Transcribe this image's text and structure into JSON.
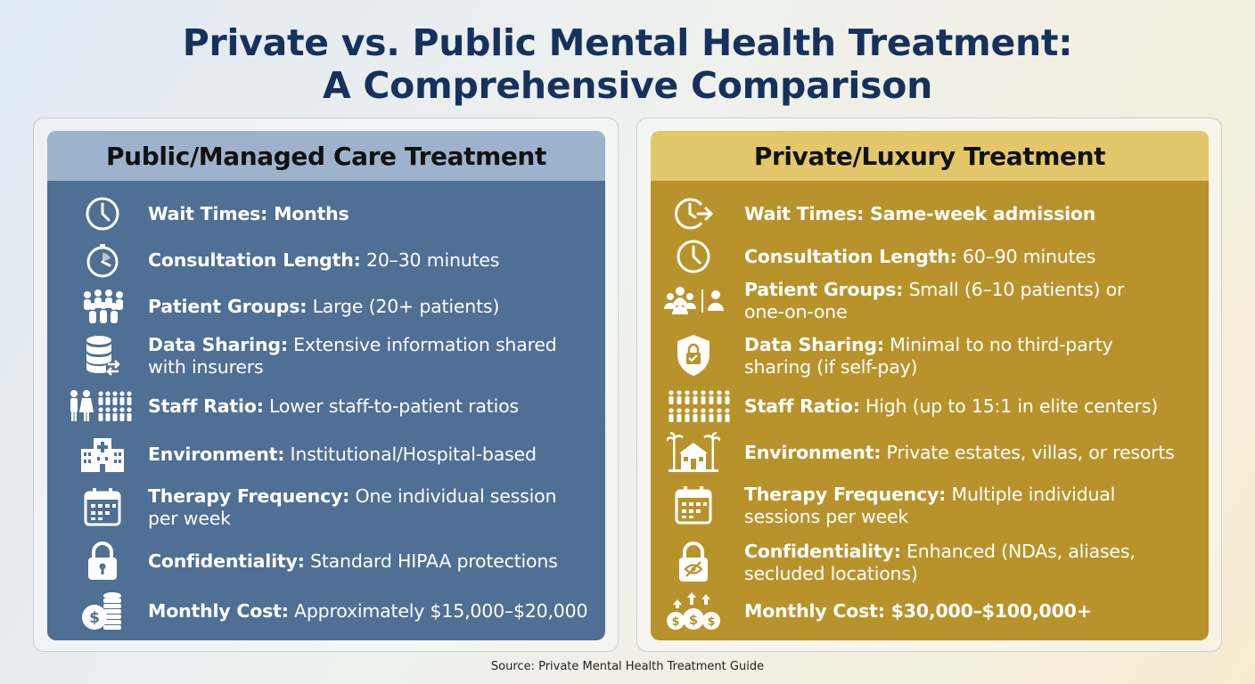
{
  "title": {
    "line1": "Private vs. Public Mental Health Treatment:",
    "line2": "A Comprehensive Comparison"
  },
  "colors": {
    "title": "#16325c",
    "public_card": "#4f6f94",
    "public_header": "#9db3cd",
    "private_card": "#b8932c",
    "private_header": "#e3c76b"
  },
  "public": {
    "heading": "Public/Managed Care Treatment",
    "rows": [
      {
        "icon": "clock-icon",
        "label": "Wait Times: Months",
        "value": "",
        "value2": ""
      },
      {
        "icon": "stopwatch-icon",
        "label": "Consultation Length:",
        "value": " 20–30 minutes",
        "value2": ""
      },
      {
        "icon": "crowd-icon",
        "label": "Patient Groups:",
        "value": " Large (20+ patients)",
        "value2": ""
      },
      {
        "icon": "database-transfer-icon",
        "label": "Data Sharing:",
        "value": " Extensive information shared",
        "value2": "with insurers"
      },
      {
        "icon": "staff-people-icon",
        "label": "Staff Ratio:",
        "value": " Lower staff-to-patient ratios",
        "value2": ""
      },
      {
        "icon": "hospital-icon",
        "label": "Environment:",
        "value": " Institutional/Hospital-based",
        "value2": ""
      },
      {
        "icon": "calendar-icon",
        "label": "Therapy Frequency:",
        "value": " One individual session",
        "value2": "per week"
      },
      {
        "icon": "lock-icon",
        "label": "Confidentiality:",
        "value": " Standard HIPAA protections",
        "value2": ""
      },
      {
        "icon": "coins-icon",
        "label": "Monthly Cost:",
        "value": " Approximately $15,000–$20,000",
        "value2": ""
      }
    ]
  },
  "private": {
    "heading": "Private/Luxury Treatment",
    "rows": [
      {
        "icon": "fast-clock-icon",
        "label": "Wait Times: Same-week admission",
        "value": "",
        "value2": ""
      },
      {
        "icon": "clock-icon",
        "label": "Consultation Length:",
        "value": " 60–90 minutes",
        "value2": ""
      },
      {
        "icon": "small-group-icon",
        "label": "Patient Groups:",
        "value": " Small (6–10 patients) or",
        "value2": "one-on-one"
      },
      {
        "icon": "shield-check-icon",
        "label": "Data Sharing:",
        "value": " Minimal to no third-party",
        "value2": "sharing (if self-pay)"
      },
      {
        "icon": "staff-people-icon",
        "label": "Staff Ratio:",
        "value": " High (up to 15:1 in elite centers)",
        "value2": ""
      },
      {
        "icon": "villa-icon",
        "label": "Environment:",
        "value": " Private estates, villas, or resorts",
        "value2": ""
      },
      {
        "icon": "calendar-icon",
        "label": "Therapy Frequency:",
        "value": " Multiple individual",
        "value2": "sessions per week"
      },
      {
        "icon": "lock-eye-icon",
        "label": "Confidentiality:",
        "value": " Enhanced (NDAs, aliases,",
        "value2": "secluded locations)"
      },
      {
        "icon": "money-growth-icon",
        "label": "Monthly Cost: $30,000–$100,000+",
        "value": "",
        "value2": ""
      }
    ]
  },
  "source": "Source: Private Mental Health Treatment Guide"
}
